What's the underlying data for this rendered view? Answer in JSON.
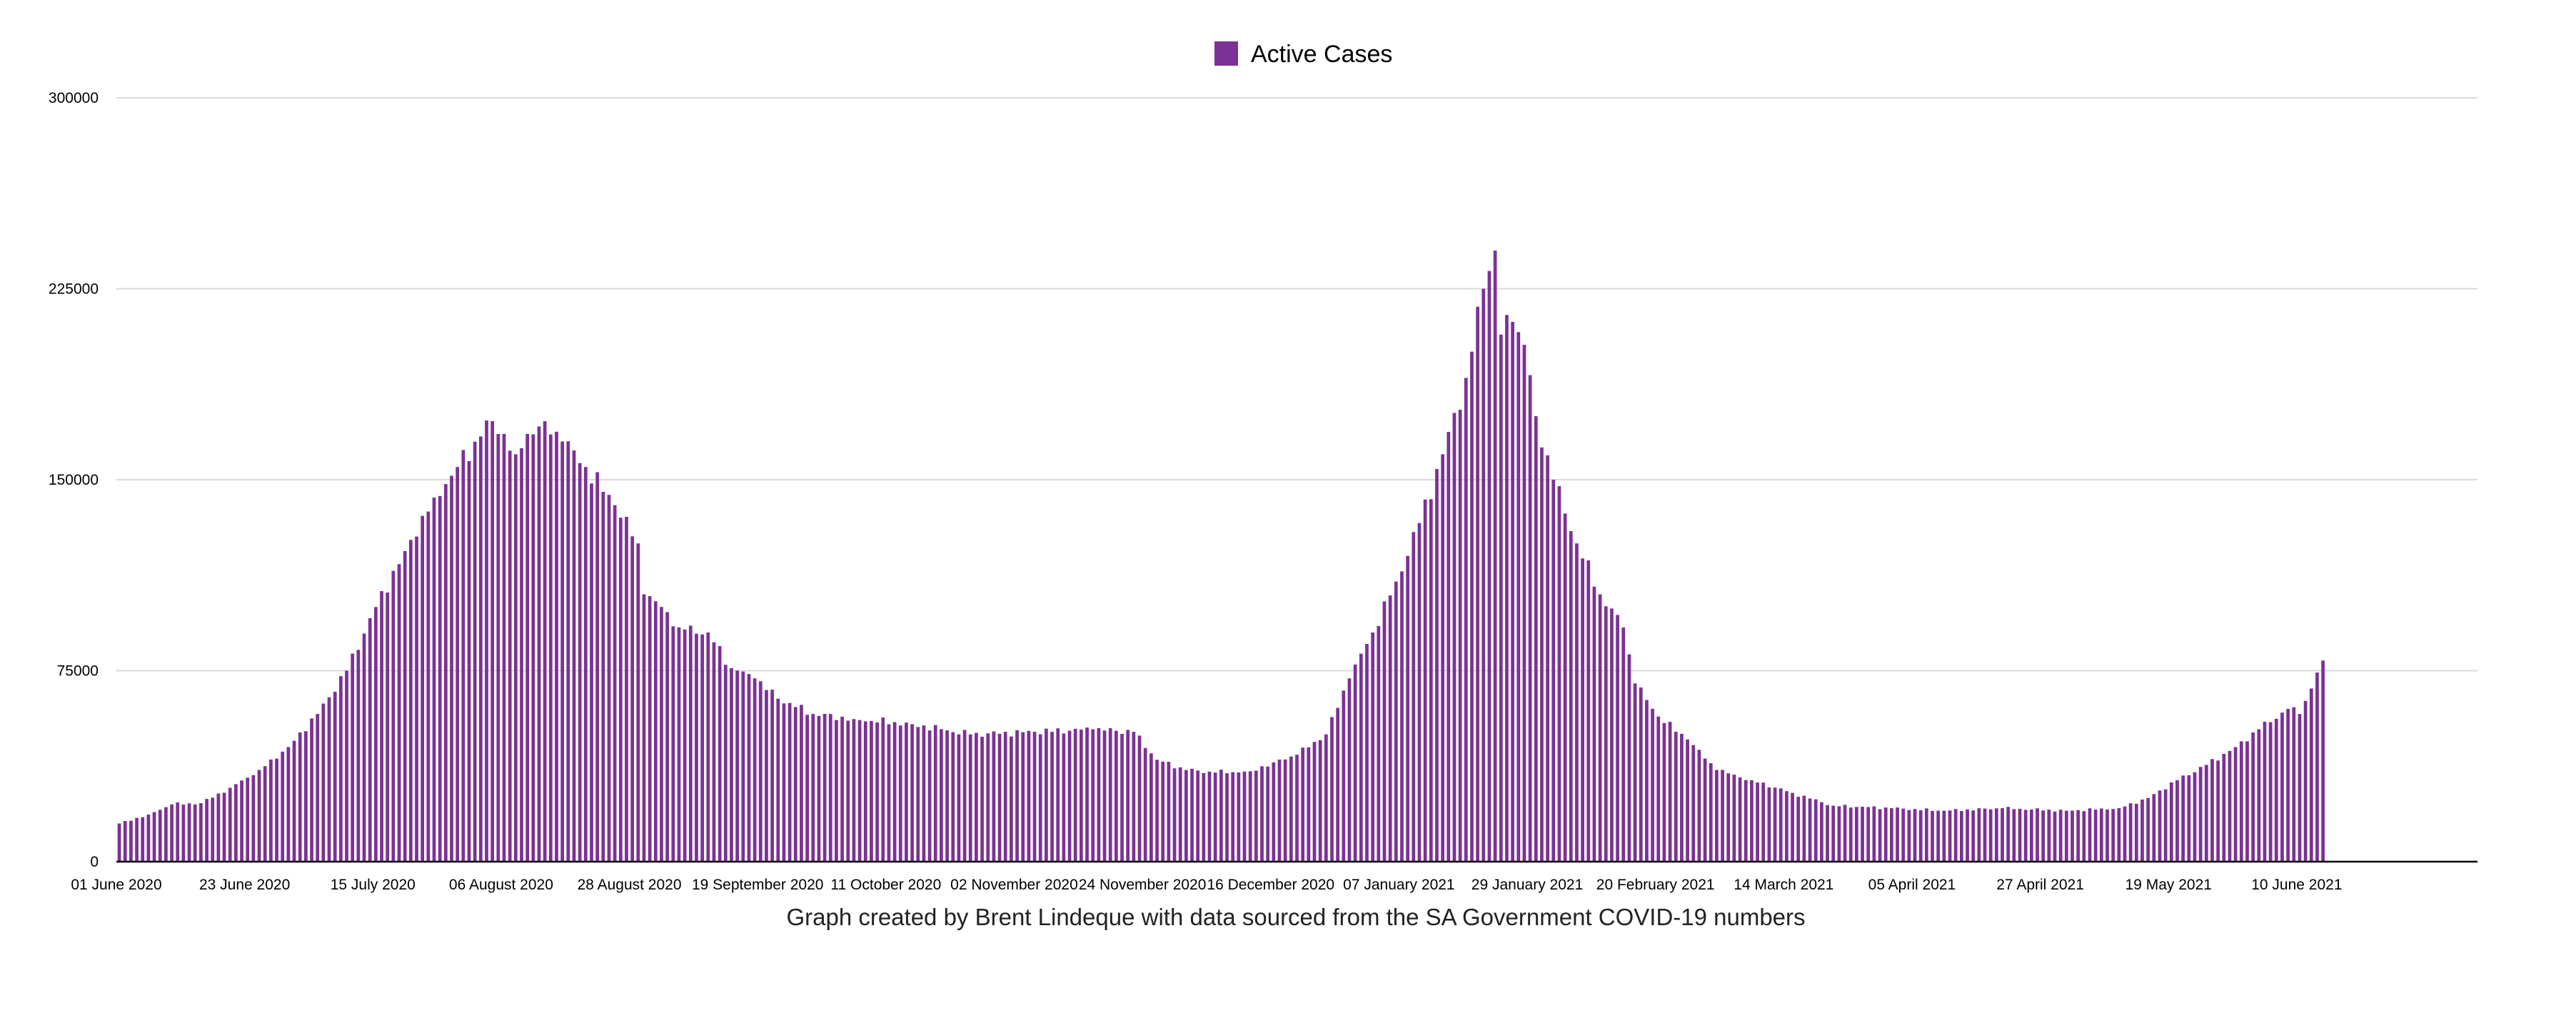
{
  "chart_data": {
    "type": "bar",
    "title": "",
    "xlabel": "",
    "ylabel": "",
    "caption": "Graph created by Brent Lindeque with data sourced from the SA Government COVID-19 numbers",
    "legend": {
      "position": "top-center",
      "entries": [
        {
          "name": "Active Cases",
          "color": "#7b3294"
        }
      ]
    },
    "grid": true,
    "ylim": [
      0,
      300000
    ],
    "y_ticks": [
      0,
      75000,
      150000,
      225000,
      300000
    ],
    "y_tick_labels": [
      "0",
      "75000",
      "150000",
      "225000",
      "300000"
    ],
    "x_tick_labels": [
      "01 June 2020",
      "23 June 2020",
      "15 July 2020",
      "06 August 2020",
      "28 August 2020",
      "19 September 2020",
      "11 October 2020",
      "02 November 2020",
      "24 November 2020",
      "16 December 2020",
      "07 January 2021",
      "29 January 2021",
      "20 February 2021",
      "14 March 2021",
      "05 April 2021",
      "27 April 2021",
      "19 May 2021",
      "10 June 2021"
    ],
    "x_start": "2020-06-01",
    "x_end": "2021-06-14",
    "x_domain_end": "2021-07-11",
    "series": [
      {
        "name": "Active Cases",
        "color": "#7b3294",
        "anchors": [
          [
            "2020-06-01",
            15000
          ],
          [
            "2020-06-06",
            18500
          ],
          [
            "2020-06-10",
            22500
          ],
          [
            "2020-06-15",
            23000
          ],
          [
            "2020-06-20",
            29000
          ],
          [
            "2020-06-25",
            36000
          ],
          [
            "2020-06-30",
            45000
          ],
          [
            "2020-07-05",
            58000
          ],
          [
            "2020-07-10",
            75000
          ],
          [
            "2020-07-15",
            100000
          ],
          [
            "2020-07-20",
            122000
          ],
          [
            "2020-07-25",
            143000
          ],
          [
            "2020-07-29",
            155000
          ],
          [
            "2020-08-02",
            167000
          ],
          [
            "2020-08-04",
            173000
          ],
          [
            "2020-08-06",
            168000
          ],
          [
            "2020-08-08",
            160000
          ],
          [
            "2020-08-10",
            168000
          ],
          [
            "2020-08-13",
            173000
          ],
          [
            "2020-08-16",
            165000
          ],
          [
            "2020-08-20",
            155000
          ],
          [
            "2020-08-25",
            140000
          ],
          [
            "2020-08-29",
            125000
          ],
          [
            "2020-08-30",
            105000
          ],
          [
            "2020-09-03",
            98000
          ],
          [
            "2020-09-05",
            92000
          ],
          [
            "2020-09-10",
            90000
          ],
          [
            "2020-09-14",
            76000
          ],
          [
            "2020-09-18",
            72000
          ],
          [
            "2020-09-22",
            64000
          ],
          [
            "2020-09-28",
            58000
          ],
          [
            "2020-10-05",
            56000
          ],
          [
            "2020-10-15",
            54000
          ],
          [
            "2020-10-25",
            50000
          ],
          [
            "2020-11-05",
            51000
          ],
          [
            "2020-11-15",
            52000
          ],
          [
            "2020-11-22",
            51000
          ],
          [
            "2020-11-26",
            40000
          ],
          [
            "2020-12-01",
            36000
          ],
          [
            "2020-12-06",
            35000
          ],
          [
            "2020-12-12",
            35500
          ],
          [
            "2020-12-16",
            39000
          ],
          [
            "2020-12-20",
            42000
          ],
          [
            "2020-12-25",
            50000
          ],
          [
            "2020-12-29",
            72000
          ],
          [
            "2021-01-02",
            90000
          ],
          [
            "2021-01-06",
            110000
          ],
          [
            "2021-01-10",
            133000
          ],
          [
            "2021-01-14",
            160000
          ],
          [
            "2021-01-18",
            190000
          ],
          [
            "2021-01-21",
            225000
          ],
          [
            "2021-01-22",
            232000
          ],
          [
            "2021-01-23",
            240000
          ],
          [
            "2021-01-24",
            207000
          ],
          [
            "2021-01-26",
            212000
          ],
          [
            "2021-01-28",
            203000
          ],
          [
            "2021-01-30",
            175000
          ],
          [
            "2021-02-02",
            150000
          ],
          [
            "2021-02-06",
            125000
          ],
          [
            "2021-02-10",
            105000
          ],
          [
            "2021-02-14",
            92000
          ],
          [
            "2021-02-16",
            70000
          ],
          [
            "2021-02-20",
            57000
          ],
          [
            "2021-02-25",
            48000
          ],
          [
            "2021-03-02",
            36000
          ],
          [
            "2021-03-08",
            32000
          ],
          [
            "2021-03-15",
            27000
          ],
          [
            "2021-03-22",
            22000
          ],
          [
            "2021-04-01",
            21000
          ],
          [
            "2021-04-10",
            20000
          ],
          [
            "2021-04-20",
            21000
          ],
          [
            "2021-05-01",
            20000
          ],
          [
            "2021-05-10",
            21000
          ],
          [
            "2021-05-15",
            25000
          ],
          [
            "2021-05-20",
            32000
          ],
          [
            "2021-05-25",
            38000
          ],
          [
            "2021-05-30",
            45000
          ],
          [
            "2021-06-03",
            52000
          ],
          [
            "2021-06-08",
            60000
          ],
          [
            "2021-06-10",
            58000
          ],
          [
            "2021-06-12",
            68000
          ],
          [
            "2021-06-14",
            79000
          ]
        ]
      }
    ]
  }
}
